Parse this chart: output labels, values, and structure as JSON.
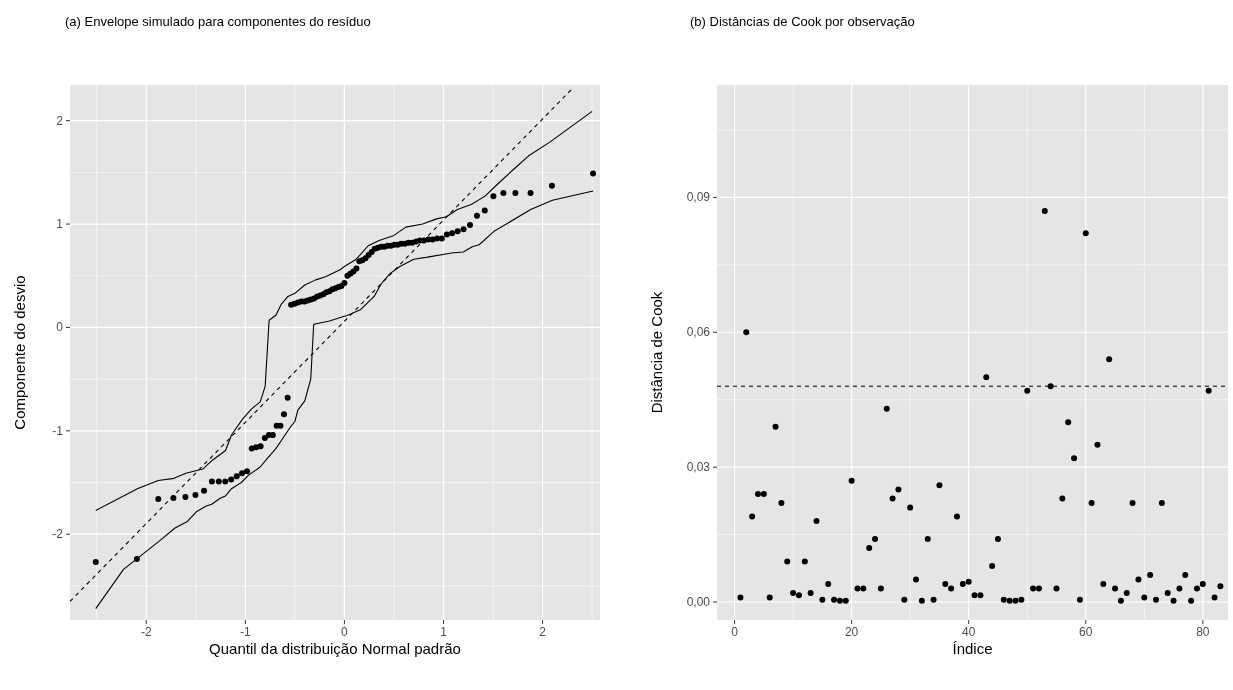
{
  "chart_data": [
    {
      "type": "scatter",
      "title": "(a)  Envelope simulado para componentes do resíduo",
      "xlabel": "Quantil da distribuição Normal padrão",
      "ylabel": "Componente do desvio",
      "xlim": [
        -2.77,
        2.58
      ],
      "ylim": [
        -2.83,
        2.345
      ],
      "xticks": [
        -2,
        -1,
        0,
        1,
        2
      ],
      "yticks": [
        2,
        1,
        0,
        -1,
        -2
      ],
      "grid": true,
      "series": [
        {
          "type": "scatter",
          "marker": "circle",
          "color": "#000000",
          "x": [
            -2.51,
            -2.095,
            -1.879,
            -1.726,
            -1.605,
            -1.504,
            -1.417,
            -1.338,
            -1.268,
            -1.203,
            -1.143,
            -1.087,
            -1.034,
            -0.983,
            -0.935,
            -0.89,
            -0.846,
            -0.803,
            -0.762,
            -0.723,
            -0.684,
            -0.646,
            -0.61,
            -0.573,
            -0.538,
            -0.504,
            -0.47,
            -0.436,
            -0.403,
            -0.371,
            -0.338,
            -0.306,
            -0.275,
            -0.244,
            -0.213,
            -0.182,
            -0.151,
            -0.121,
            -0.091,
            -0.06,
            -0.03,
            0,
            0.03,
            0.06,
            0.091,
            0.121,
            0.151,
            0.182,
            0.213,
            0.244,
            0.275,
            0.306,
            0.338,
            0.371,
            0.403,
            0.436,
            0.47,
            0.504,
            0.538,
            0.573,
            0.61,
            0.646,
            0.684,
            0.723,
            0.762,
            0.803,
            0.846,
            0.89,
            0.935,
            0.983,
            1.034,
            1.087,
            1.143,
            1.203,
            1.268,
            1.338,
            1.417,
            1.504,
            1.605,
            1.726,
            1.879,
            2.095,
            2.51
          ],
          "values": [
            -2.27,
            -2.24,
            -1.66,
            -1.65,
            -1.64,
            -1.62,
            -1.58,
            -1.49,
            -1.49,
            -1.49,
            -1.47,
            -1.44,
            -1.41,
            -1.39,
            -1.17,
            -1.16,
            -1.15,
            -1.07,
            -1.04,
            -1.04,
            -0.95,
            -0.95,
            -0.84,
            -0.68,
            0.22,
            0.23,
            0.24,
            0.25,
            0.25,
            0.26,
            0.27,
            0.28,
            0.3,
            0.31,
            0.32,
            0.34,
            0.35,
            0.37,
            0.38,
            0.39,
            0.4,
            0.43,
            0.5,
            0.52,
            0.54,
            0.57,
            0.64,
            0.65,
            0.67,
            0.7,
            0.73,
            0.76,
            0.77,
            0.78,
            0.78,
            0.79,
            0.79,
            0.8,
            0.8,
            0.81,
            0.81,
            0.82,
            0.82,
            0.83,
            0.84,
            0.84,
            0.85,
            0.85,
            0.86,
            0.86,
            0.9,
            0.91,
            0.93,
            0.95,
            0.99,
            1.08,
            1.13,
            1.27,
            1.3,
            1.3,
            1.3,
            1.37,
            1.49
          ]
        },
        {
          "type": "line",
          "color": "#000000",
          "line_style": "solid",
          "x": [
            -2.51,
            -2.09,
            -1.88,
            -1.72,
            -1.6,
            -1.43,
            -1.34,
            -1.2,
            -1.14,
            -1.03,
            -0.94,
            -0.85,
            -0.8,
            -0.76,
            -0.69,
            -0.64,
            -0.57,
            -0.5,
            -0.4,
            -0.29,
            -0.19,
            -0.04,
            0,
            0.12,
            0.24,
            0.35,
            0.5,
            0.62,
            0.79,
            0.93,
            1.03,
            1.14,
            1.28,
            1.42,
            1.55,
            1.72,
            1.86,
            2.07,
            2.5
          ],
          "values": [
            -1.77,
            -1.56,
            -1.48,
            -1.46,
            -1.41,
            -1.37,
            -1.29,
            -1.19,
            -1.04,
            -0.89,
            -0.79,
            -0.72,
            -0.57,
            0.07,
            0.12,
            0.22,
            0.3,
            0.33,
            0.41,
            0.46,
            0.49,
            0.56,
            0.59,
            0.66,
            0.79,
            0.84,
            0.89,
            0.97,
            1.0,
            1.05,
            1.07,
            1.14,
            1.19,
            1.27,
            1.39,
            1.54,
            1.66,
            1.79,
            2.09
          ]
        },
        {
          "type": "line",
          "color": "#000000",
          "line_style": "solid",
          "x": [
            -2.51,
            -2.23,
            -1.86,
            -1.71,
            -1.59,
            -1.49,
            -1.4,
            -1.34,
            -1.25,
            -1.2,
            -1.14,
            -1.04,
            -0.97,
            -0.85,
            -0.78,
            -0.69,
            -0.62,
            -0.55,
            -0.5,
            -0.47,
            -0.4,
            -0.34,
            -0.31,
            -0.16,
            0.04,
            0.16,
            0.3,
            0.37,
            0.46,
            0.56,
            0.7,
            0.84,
            1.08,
            1.2,
            1.29,
            1.36,
            1.51,
            1.88,
            2.1,
            2.51
          ],
          "values": [
            -2.72,
            -2.34,
            -2.06,
            -1.94,
            -1.88,
            -1.78,
            -1.73,
            -1.71,
            -1.65,
            -1.63,
            -1.56,
            -1.5,
            -1.43,
            -1.35,
            -1.27,
            -1.17,
            -1.07,
            -0.97,
            -0.91,
            -0.8,
            -0.71,
            -0.5,
            0.03,
            0.06,
            0.12,
            0.17,
            0.3,
            0.42,
            0.52,
            0.59,
            0.66,
            0.68,
            0.72,
            0.73,
            0.78,
            0.8,
            0.93,
            1.14,
            1.23,
            1.32
          ]
        },
        {
          "type": "line",
          "color": "#000000",
          "line_style": "dashed",
          "x": [
            -2.77,
            2.29
          ],
          "values": [
            -2.65,
            2.3
          ]
        }
      ]
    },
    {
      "type": "scatter",
      "title": "(b) Distâncias de Cook por observação",
      "xlabel": "Índice",
      "ylabel": "Distância de Cook",
      "xlim": [
        -3,
        84.3
      ],
      "ylim": [
        -0.004,
        0.115
      ],
      "xticks": [
        0,
        20,
        40,
        60,
        80
      ],
      "yticks": [
        {
          "value": 0,
          "label": "0,00"
        },
        {
          "value": 0.03,
          "label": "0,03"
        },
        {
          "value": 0.06,
          "label": "0,06"
        },
        {
          "value": 0.09,
          "label": "0,09"
        }
      ],
      "grid": true,
      "marker": "circle",
      "ref_lines": [
        {
          "axis": "y",
          "value": 0.048,
          "label": null,
          "color": "#000000",
          "line_style": "dashed"
        }
      ],
      "series": [
        {
          "type": "scatter",
          "color": "#000000",
          "x": [
            1,
            2,
            3,
            4,
            5,
            6,
            7,
            8,
            9,
            10,
            11,
            12,
            13,
            14,
            15,
            16,
            17,
            18,
            19,
            20,
            21,
            22,
            23,
            24,
            25,
            26,
            27,
            28,
            29,
            30,
            31,
            32,
            33,
            34,
            35,
            36,
            37,
            38,
            39,
            40,
            41,
            42,
            43,
            44,
            45,
            46,
            47,
            48,
            49,
            50,
            51,
            52,
            53,
            54,
            55,
            56,
            57,
            58,
            59,
            60,
            61,
            62,
            63,
            64,
            65,
            66,
            67,
            68,
            69,
            70,
            71,
            72,
            73,
            74,
            75,
            76,
            77,
            78,
            79,
            80,
            81,
            82,
            83
          ],
          "values": [
            0.001,
            0.06,
            0.019,
            0.024,
            0.024,
            0.001,
            0.039,
            0.022,
            0.009,
            0.002,
            0.0015,
            0.009,
            0.002,
            0.018,
            0.0005,
            0.004,
            0.0005,
            0.0003,
            0.0003,
            0.027,
            0.003,
            0.003,
            0.012,
            0.014,
            0.003,
            0.043,
            0.023,
            0.025,
            0.0005,
            0.021,
            0.005,
            0.0003,
            0.014,
            0.0005,
            0.026,
            0.004,
            0.003,
            0.019,
            0.004,
            0.0045,
            0.0015,
            0.0015,
            0.05,
            0.008,
            0.014,
            0.0005,
            0.0003,
            0.0003,
            0.0005,
            0.047,
            0.003,
            0.003,
            0.087,
            0.048,
            0.003,
            0.023,
            0.04,
            0.032,
            0.0005,
            0.082,
            0.022,
            0.035,
            0.004,
            0.054,
            0.003,
            0.0003,
            0.002,
            0.022,
            0.005,
            0.001,
            0.006,
            0.0005,
            0.022,
            0.002,
            0.0003,
            0.003,
            0.006,
            0.0003,
            0.003,
            0.004,
            0.047,
            0.001,
            0.0035
          ]
        }
      ]
    }
  ]
}
